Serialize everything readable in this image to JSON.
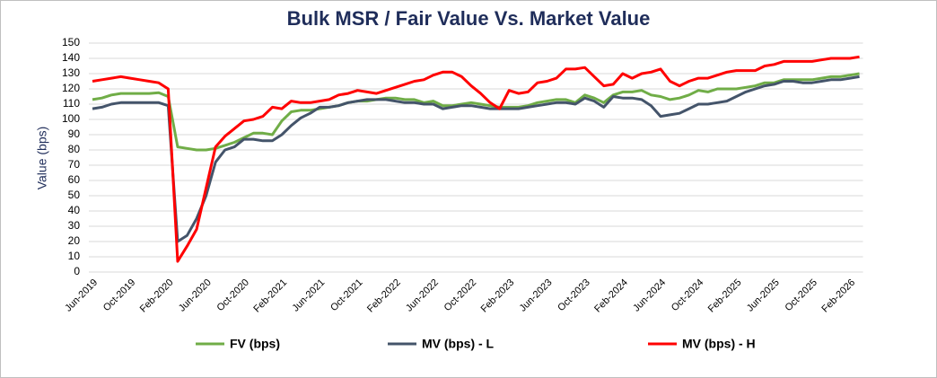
{
  "chart_data": {
    "type": "line",
    "title": "Bulk MSR / Fair Value Vs. Market Value",
    "y_label": "Value (bps)",
    "categories": [
      "Jun-2019",
      null,
      null,
      null,
      "Oct-2019",
      null,
      null,
      null,
      "Feb-2020",
      null,
      null,
      null,
      "Jun-2020",
      null,
      null,
      null,
      "Oct-2020",
      null,
      null,
      null,
      "Feb-2021",
      null,
      null,
      null,
      "Jun-2021",
      null,
      null,
      null,
      "Oct-2021",
      null,
      null,
      null,
      "Feb-2022",
      null,
      null,
      null,
      "Jun-2022",
      null,
      null,
      null,
      "Oct-2022",
      null,
      null,
      null,
      "Feb-2023",
      null,
      null,
      null,
      "Jun-2023",
      null,
      null,
      null,
      "Oct-2023",
      null,
      null,
      null,
      "Feb-2024",
      null,
      null,
      null,
      "Jun-2024",
      null,
      null,
      null,
      "Oct-2024",
      null,
      null,
      null,
      "Feb-2025",
      null,
      null,
      null,
      "Jun-2025",
      null,
      null,
      null,
      "Oct-2025",
      null,
      null,
      null,
      "Feb-2026",
      null
    ],
    "series": [
      {
        "name": "FV (bps)",
        "color": "#70ad47",
        "values": [
          113,
          114,
          116,
          117,
          117,
          117,
          117,
          117.5,
          115,
          82,
          81,
          80,
          80,
          81,
          83,
          85,
          88,
          91,
          91,
          90,
          99,
          105,
          106,
          106,
          107,
          108,
          109,
          111,
          112,
          112,
          113,
          114,
          114,
          113,
          113,
          111,
          112,
          109,
          109,
          110,
          111,
          110,
          109,
          108,
          108,
          108,
          109,
          111,
          112,
          113,
          113,
          111,
          116,
          114,
          111,
          116,
          118,
          118,
          119,
          116,
          115,
          113,
          114,
          116,
          119,
          118,
          120,
          120,
          120,
          121,
          122,
          124,
          124,
          126,
          126,
          126,
          126,
          127,
          128,
          128,
          129,
          130
        ]
      },
      {
        "name": "MV (bps) - L",
        "color": "#44546a",
        "values": [
          107,
          108,
          110,
          111,
          111,
          111,
          111,
          111,
          109,
          20,
          24,
          35,
          50,
          72,
          80,
          82,
          87,
          87,
          86,
          86,
          90,
          96,
          101,
          104,
          108,
          108,
          109,
          111,
          112,
          113,
          113,
          113,
          112,
          111,
          111,
          110,
          110,
          107,
          108,
          109,
          109,
          108,
          107,
          107,
          107,
          107,
          108,
          109,
          110,
          111,
          111,
          110,
          114,
          112,
          108,
          115,
          114,
          114,
          113,
          109,
          102,
          103,
          104,
          107,
          110,
          110,
          111,
          112,
          115,
          118,
          120,
          122,
          123,
          125,
          125,
          124,
          124,
          125,
          126,
          126,
          127,
          128
        ]
      },
      {
        "name": "MV (bps) - H",
        "color": "#ff0000",
        "values": [
          125,
          126,
          127,
          128,
          127,
          126,
          125,
          124,
          120,
          7,
          17,
          28,
          55,
          82,
          89,
          94,
          99,
          100,
          102,
          108,
          107,
          112,
          111,
          111,
          112,
          113,
          116,
          117,
          119,
          118,
          117,
          119,
          121,
          123,
          125,
          126,
          129,
          131,
          131,
          128,
          122,
          117,
          111,
          107,
          119,
          117,
          118,
          124,
          125,
          127,
          133,
          133,
          134,
          128,
          122,
          123,
          130,
          127,
          130,
          131,
          133,
          125,
          122,
          125,
          127,
          127,
          129,
          131,
          132,
          132,
          132,
          135,
          136,
          138,
          138,
          138,
          138,
          139,
          140,
          140,
          140,
          141
        ]
      }
    ],
    "ylim": [
      0,
      150
    ],
    "yticks": [
      0,
      10,
      20,
      30,
      40,
      50,
      60,
      70,
      80,
      90,
      100,
      110,
      120,
      130,
      140,
      150
    ],
    "grid": true
  }
}
